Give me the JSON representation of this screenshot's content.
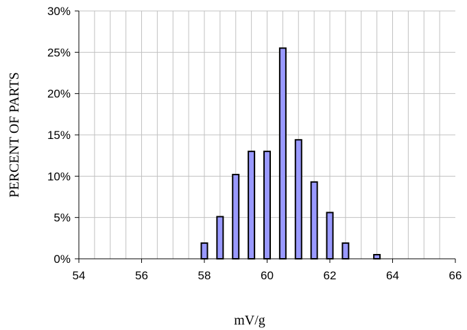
{
  "chart_data": {
    "type": "bar",
    "title": "",
    "xlabel": "mV/g",
    "ylabel": "PERCENT OF PARTS",
    "xlim": [
      54,
      66
    ],
    "ylim": [
      0,
      30
    ],
    "x_ticks": [
      54,
      56,
      58,
      60,
      62,
      64,
      66
    ],
    "x_tick_labels": [
      "54",
      "56",
      "58",
      "60",
      "62",
      "64",
      "66"
    ],
    "y_ticks": [
      0,
      5,
      10,
      15,
      20,
      25,
      30
    ],
    "y_tick_labels": [
      "0%",
      "5%",
      "10%",
      "15%",
      "20%",
      "25%",
      "30%"
    ],
    "x": [
      58,
      58.5,
      59,
      59.5,
      60,
      60.5,
      61,
      61.5,
      62,
      62.5,
      63,
      63.5
    ],
    "values": [
      1.9,
      5.1,
      10.2,
      13.0,
      13.0,
      25.5,
      14.4,
      9.3,
      5.6,
      1.9,
      0,
      0.5
    ],
    "grid": true,
    "legend": "none",
    "bar_color": "#9999ff",
    "bar_edge_color": "#000000"
  }
}
